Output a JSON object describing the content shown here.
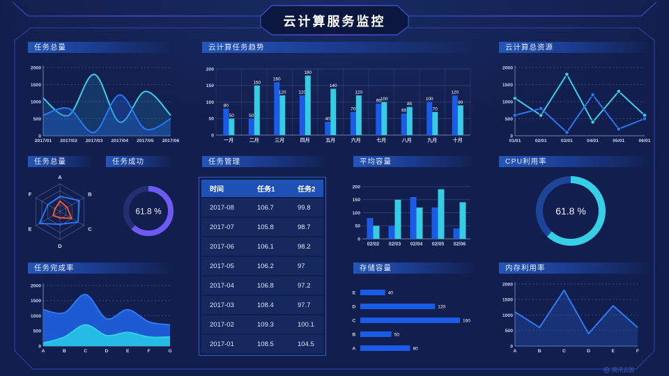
{
  "page": {
    "title": "云计算服务监控",
    "watermark": "腾讯云图",
    "background": "#121f4e",
    "accent_blue": "#1a5ce8",
    "accent_cyan": "#35cde4",
    "accent_purple": "#6e59f2",
    "accent_orange": "#f4572c"
  },
  "panels": {
    "tasks_total": {
      "title": "任务总量"
    },
    "task_trend": {
      "title": "云计算任务趋势"
    },
    "total_resources": {
      "title": "云计算总资源"
    },
    "tasks_radar": {
      "title": "任务总量"
    },
    "task_success": {
      "title": "任务成功"
    },
    "task_table": {
      "title": "任务管理"
    },
    "avg_capacity": {
      "title": "平均容量"
    },
    "cpu": {
      "title": "CPU利用率"
    },
    "completion": {
      "title": "任务完成率"
    },
    "storage": {
      "title": "存储容量"
    },
    "memory": {
      "title": "内存利用率"
    }
  },
  "chart_data": [
    {
      "id": "tasks_total",
      "type": "line",
      "title": "任务总量",
      "smooth": true,
      "area": true,
      "markers": false,
      "x": [
        "2017/01",
        "2017/02",
        "2017/03",
        "2017/04",
        "2017/05",
        "2017/06"
      ],
      "series": [
        {
          "name": "series-cyan",
          "color": "#3bd0e8",
          "fill": "rgba(45,170,225,0.18)",
          "values": [
            1100,
            600,
            1800,
            400,
            1300,
            600
          ]
        },
        {
          "name": "series-blue",
          "color": "#2678f2",
          "fill": "rgba(35,95,210,0.38)",
          "values": [
            600,
            800,
            100,
            1200,
            200,
            500
          ]
        }
      ],
      "ylim": [
        0,
        2000
      ],
      "yticks": [
        0,
        500,
        1000,
        1500,
        2000
      ],
      "grid": "dashed",
      "legend": "none"
    },
    {
      "id": "task_trend",
      "type": "bar",
      "title": "云计算任务趋势",
      "categories": [
        "一月",
        "二月",
        "三月",
        "四月",
        "五月",
        "六月",
        "七月",
        "八月",
        "九月",
        "十月"
      ],
      "series": [
        {
          "name": "任务1",
          "color": "#1a5ce8",
          "values": [
            80,
            50,
            160,
            120,
            40,
            70,
            95,
            65,
            100,
            120
          ]
        },
        {
          "name": "任务2",
          "color": "#35cde4",
          "values": [
            50,
            150,
            120,
            180,
            140,
            120,
            100,
            85,
            70,
            90
          ]
        }
      ],
      "ylim": [
        0,
        200
      ],
      "yticks": [
        0,
        50,
        100,
        150,
        200
      ],
      "value_labels": true,
      "legend": "none"
    },
    {
      "id": "total_resources",
      "type": "line",
      "title": "云计算总资源",
      "smooth": false,
      "area": false,
      "markers": true,
      "x": [
        "01/01",
        "02/01",
        "03/01",
        "04/01",
        "05/01",
        "06/01"
      ],
      "series": [
        {
          "name": "series-cyan",
          "color": "#3bd0e8",
          "values": [
            1100,
            600,
            1800,
            400,
            1300,
            600
          ]
        },
        {
          "name": "series-blue",
          "color": "#2678f2",
          "values": [
            600,
            800,
            100,
            1200,
            200,
            500
          ]
        }
      ],
      "ylim": [
        0,
        2000
      ],
      "yticks": [
        0,
        500,
        1000,
        1500,
        2000
      ],
      "grid": "dashed",
      "legend": "none"
    },
    {
      "id": "tasks_radar",
      "type": "radar",
      "title": "任务总量",
      "axes": [
        "A",
        "B",
        "C",
        "D",
        "E",
        "F"
      ],
      "max": 100,
      "series": [
        {
          "name": "series-blue",
          "color": "#2678f2",
          "values": [
            55,
            80,
            75,
            45,
            85,
            50
          ]
        },
        {
          "name": "series-orange",
          "color": "#f4572c",
          "values": [
            38,
            30,
            48,
            22,
            28,
            20
          ]
        }
      ]
    },
    {
      "id": "task_success",
      "type": "donut",
      "title": "任务成功",
      "value": 61.8,
      "label": "61.8 %",
      "color": "#6e59f2",
      "track": "#232f6e"
    },
    {
      "id": "task_table",
      "type": "table",
      "title": "任务管理",
      "columns": [
        "时间",
        "任务1",
        "任务2"
      ],
      "rows": [
        [
          "2017-08",
          "106.7",
          "99.8"
        ],
        [
          "2017-07",
          "105.8",
          "98.7"
        ],
        [
          "2017-06",
          "106.1",
          "98.2"
        ],
        [
          "2017-05",
          "106.2",
          "97"
        ],
        [
          "2017-04",
          "106.8",
          "97.2"
        ],
        [
          "2017-03",
          "108.4",
          "97.7"
        ],
        [
          "2017-02",
          "109.3",
          "100.1"
        ],
        [
          "2017-01",
          "108.5",
          "104.5"
        ]
      ]
    },
    {
      "id": "avg_capacity",
      "type": "bar",
      "title": "平均容量",
      "categories": [
        "02/02",
        "02/03",
        "02/04",
        "02/05",
        "02/06"
      ],
      "series": [
        {
          "name": "series-blue",
          "color": "#1a5ce8",
          "values": [
            80,
            50,
            160,
            120,
            40
          ]
        },
        {
          "name": "series-cyan",
          "color": "#35cde4",
          "values": [
            50,
            150,
            120,
            190,
            140
          ]
        }
      ],
      "ylim": [
        0,
        200
      ],
      "yticks": [
        0,
        50,
        100,
        150,
        200
      ],
      "value_labels": false,
      "legend": "none"
    },
    {
      "id": "cpu",
      "type": "donut",
      "title": "CPU利用率",
      "value": 61.8,
      "label": "61.8 %",
      "color": "#35d0e6",
      "track": "#1c4499"
    },
    {
      "id": "completion",
      "type": "area",
      "title": "任务完成率",
      "smooth": true,
      "area": true,
      "markers": false,
      "x": [
        "A",
        "B",
        "C",
        "D",
        "E",
        "F",
        "G"
      ],
      "series": [
        {
          "name": "series-blue",
          "color": "#2e7af5",
          "fill": "rgba(29,95,216,0.95)",
          "values": [
            1200,
            1100,
            1700,
            900,
            1200,
            800,
            700
          ]
        },
        {
          "name": "series-cyan",
          "color": "#35cde4",
          "fill": "rgba(39,192,232,0.95)",
          "values": [
            100,
            300,
            700,
            350,
            450,
            300,
            300
          ]
        }
      ],
      "ylim": [
        0,
        2000
      ],
      "yticks": [
        0,
        500,
        1000,
        1500,
        2000
      ],
      "grid": "dashed",
      "legend": "none"
    },
    {
      "id": "storage",
      "type": "hbar",
      "title": "存储容量",
      "categories": [
        "E",
        "D",
        "C",
        "B",
        "A"
      ],
      "values": [
        40,
        120,
        160,
        50,
        80
      ],
      "color": "#1a5ce8",
      "xmax": 170,
      "value_labels": true
    },
    {
      "id": "memory",
      "type": "line",
      "title": "内存利用率",
      "smooth": false,
      "area": true,
      "markers": false,
      "x": [
        "A",
        "B",
        "C",
        "D",
        "E",
        "F"
      ],
      "series": [
        {
          "name": "series-blue",
          "color": "#2e7af5",
          "fill": "rgba(40,100,220,0.28)",
          "values": [
            1100,
            600,
            1800,
            400,
            1300,
            600
          ]
        }
      ],
      "ylim": [
        0,
        2000
      ],
      "yticks": [
        0,
        500,
        1000,
        1500,
        2000
      ],
      "grid": "dashed",
      "legend": "none"
    }
  ]
}
